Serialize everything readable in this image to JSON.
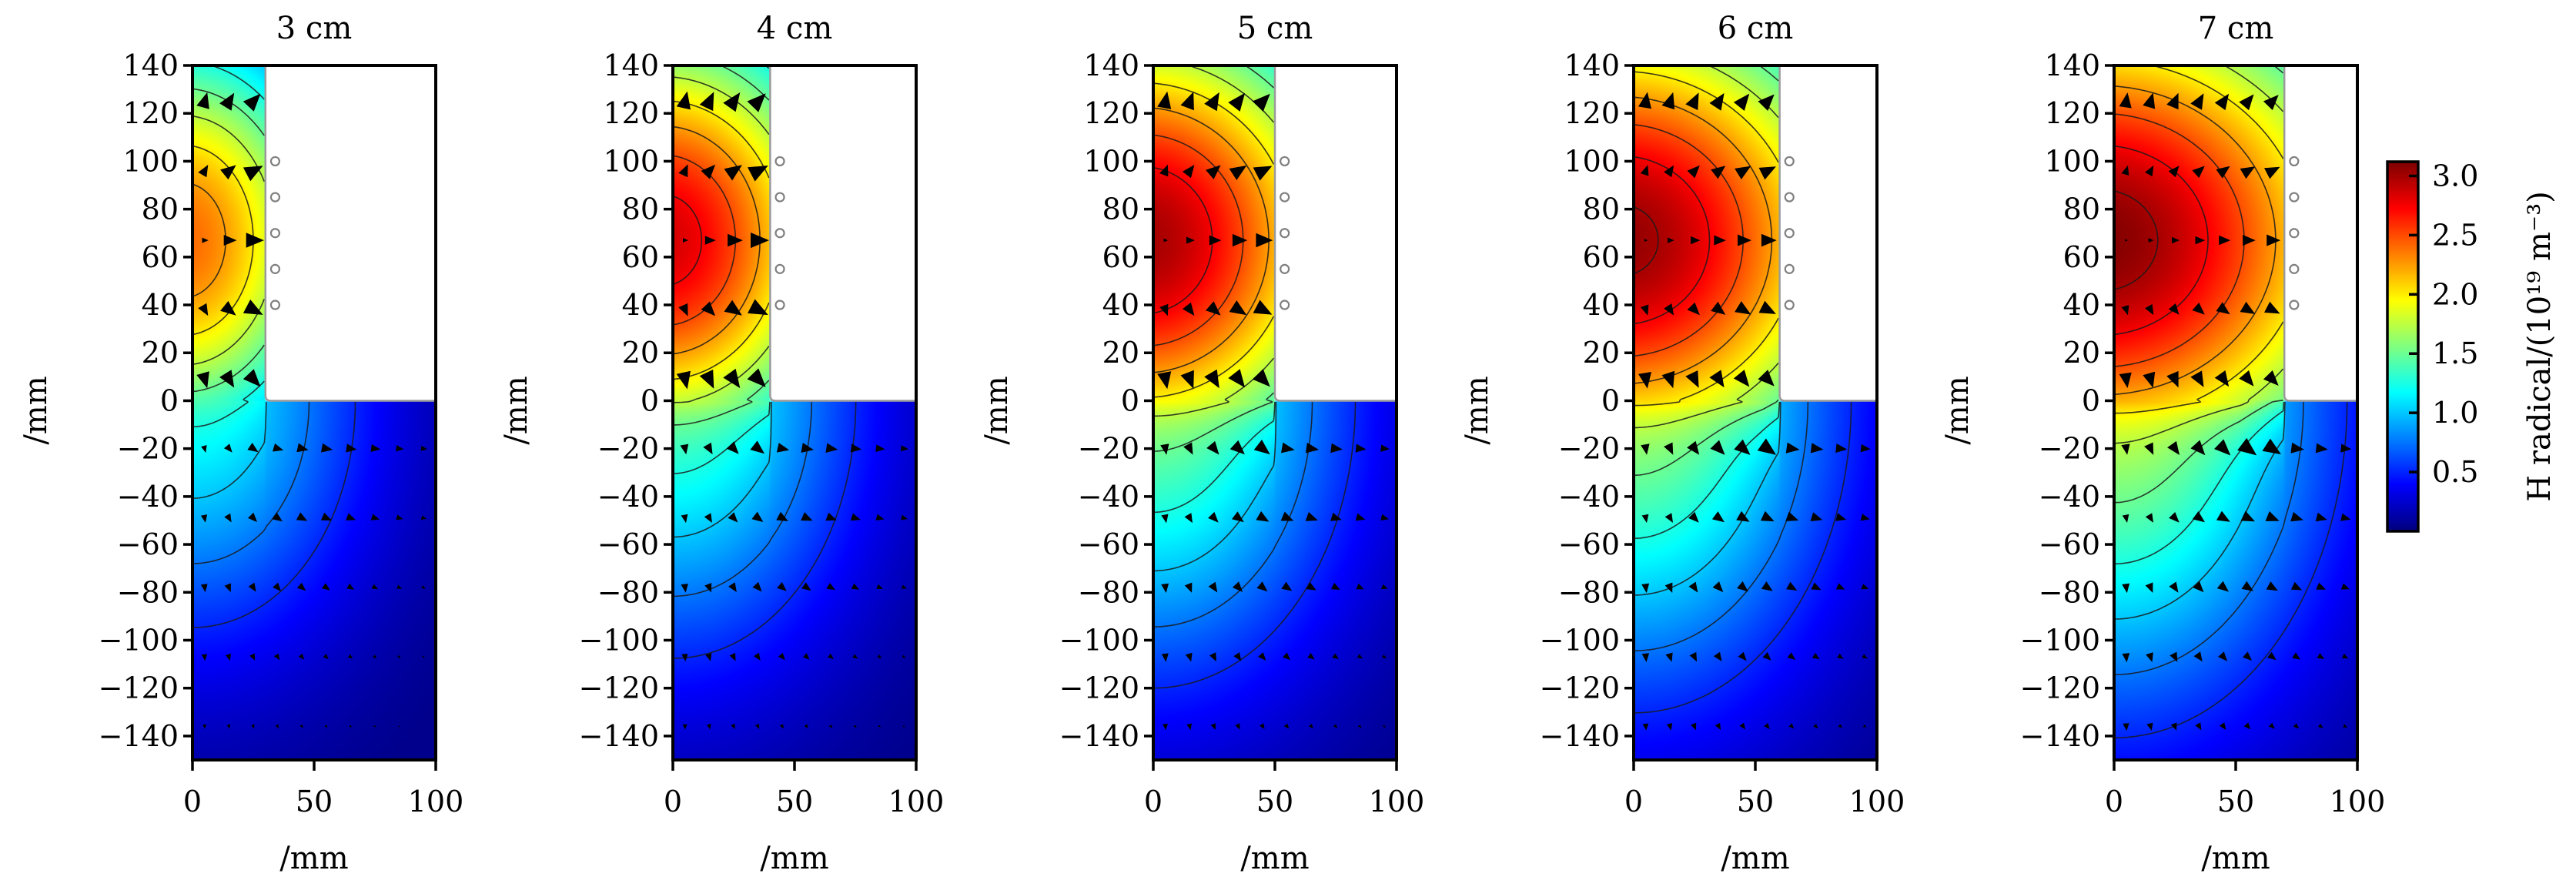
{
  "chart_data": {
    "type": "heatmap",
    "description_units": "H radical density field with flux arrows for five electrode gaps",
    "panels": [
      {
        "title": "3 cm",
        "gap_mm": 30,
        "peak_value": 2.4,
        "lower_value": 1.15
      },
      {
        "title": "4 cm",
        "gap_mm": 40,
        "peak_value": 2.85,
        "lower_value": 1.3
      },
      {
        "title": "5 cm",
        "gap_mm": 50,
        "peak_value": 3.0,
        "lower_value": 1.45
      },
      {
        "title": "6 cm",
        "gap_mm": 60,
        "peak_value": 3.05,
        "lower_value": 1.55
      },
      {
        "title": "7 cm",
        "gap_mm": 70,
        "peak_value": 3.1,
        "lower_value": 1.65
      }
    ],
    "source_center_y_mm": 67,
    "xlabel": "/mm",
    "ylabel": "/mm",
    "xlim": [
      0,
      100
    ],
    "ylim": [
      -150,
      140
    ],
    "xticks": [
      0,
      50,
      100
    ],
    "xtick_labels": [
      "0",
      "50",
      "100"
    ],
    "yticks": [
      140,
      120,
      100,
      80,
      60,
      40,
      20,
      0,
      -20,
      -40,
      -60,
      -80,
      -100,
      -120,
      -140
    ],
    "ytick_labels": [
      "140",
      "120",
      "100",
      "80",
      "60",
      "40",
      "20",
      "0",
      "−20",
      "−40",
      "−60",
      "−80",
      "−100",
      "−120",
      "−140"
    ],
    "probe_points_y_mm": [
      100,
      85,
      70,
      55,
      40
    ],
    "arrow_grid": {
      "x_mm": [
        5,
        15,
        25,
        35,
        45,
        55,
        65,
        75,
        85,
        95
      ],
      "upper_rows_y_mm": [
        125,
        96,
        67,
        38,
        9
      ],
      "lower_rows_y_mm": [
        -20,
        -49,
        -78,
        -107,
        -136
      ]
    },
    "contour_levels": [
      0.5,
      0.75,
      1.0,
      1.25,
      1.5,
      1.75,
      2.0,
      2.25,
      2.5,
      2.75,
      3.0
    ],
    "colorbar": {
      "label": "H radical/(10¹⁹ m⁻³)",
      "vmin": 0.0,
      "vmax": 3.12,
      "ticks": [
        3.0,
        2.5,
        2.0,
        1.5,
        1.0,
        0.5
      ],
      "tick_labels": [
        "3.0",
        "2.5",
        "2.0",
        "1.5",
        "1.0",
        "0.5"
      ],
      "colormap": "jet"
    },
    "colors": {
      "arrow": "#000000",
      "contour": "#1a1a1a",
      "probe": "#808080",
      "wall": "#9a9a9a"
    }
  }
}
